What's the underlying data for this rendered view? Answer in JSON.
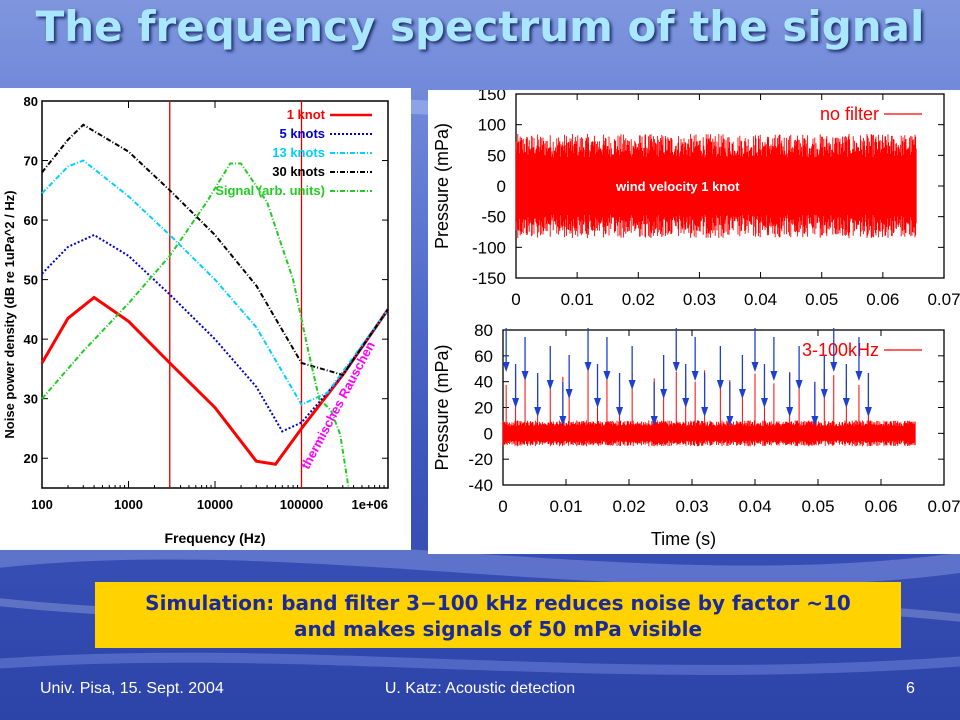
{
  "slide": {
    "title": "The frequency spectrum of the signal",
    "caption_line1": "Simulation: band filter 3−100 kHz reduces noise by factor ~10",
    "caption_line2": "and makes signals of 50 mPa visible",
    "footer_left": "Univ. Pisa, 15. Sept. 2004",
    "footer_center": "U. Katz: Acoustic detection",
    "footer_right": "6"
  },
  "colors": {
    "background": "#4a63c6",
    "title": "#a9e6ff",
    "caption_box": "#ffd200",
    "caption_text": "#1a2a99",
    "signal_trace": "#ff0000"
  },
  "chart_data": [
    {
      "type": "line",
      "xscale": "log",
      "xlabel": "Frequency (Hz)",
      "ylabel": "Noise power density (dB re 1uPa^2 / Hz)",
      "xlim": [
        100,
        1000000
      ],
      "ylim": [
        15,
        80
      ],
      "x_ticks": [
        "100",
        "1000",
        "10000",
        "100000",
        "1e+06"
      ],
      "y_ticks": [
        "20",
        "30",
        "40",
        "50",
        "60",
        "70",
        "80"
      ],
      "legend_position": "top-right",
      "vertical_markers_hz": [
        3000,
        100000
      ],
      "annotation": "thermisches Rauschen",
      "series": [
        {
          "name": "1 knot",
          "color": "#ff0000",
          "style": "solid",
          "points": [
            [
              100,
              36
            ],
            [
              200,
              43.5
            ],
            [
              400,
              47
            ],
            [
              1000,
              43
            ],
            [
              3000,
              36
            ],
            [
              10000,
              28.5
            ],
            [
              30000,
              19.5
            ],
            [
              50000,
              19
            ],
            [
              100000,
              25
            ],
            [
              300000,
              34
            ],
            [
              1000000,
              45
            ]
          ]
        },
        {
          "name": "5 knots",
          "color": "#0000cc",
          "style": "dotted",
          "points": [
            [
              100,
              51
            ],
            [
              200,
              55.5
            ],
            [
              400,
              57.5
            ],
            [
              1000,
              54
            ],
            [
              3000,
              47.5
            ],
            [
              10000,
              40
            ],
            [
              30000,
              32
            ],
            [
              60000,
              24.5
            ],
            [
              100000,
              26
            ],
            [
              300000,
              34
            ],
            [
              1000000,
              45
            ]
          ]
        },
        {
          "name": "13 knots",
          "color": "#00d0ff",
          "style": "dash-dot",
          "points": [
            [
              100,
              64.5
            ],
            [
              200,
              69
            ],
            [
              300,
              70
            ],
            [
              1000,
              64
            ],
            [
              3000,
              57.5
            ],
            [
              10000,
              50
            ],
            [
              30000,
              42
            ],
            [
              100000,
              29
            ],
            [
              200000,
              31
            ],
            [
              1000000,
              45
            ]
          ]
        },
        {
          "name": "30 knots",
          "color": "#000000",
          "style": "dash-dot",
          "points": [
            [
              100,
              68
            ],
            [
              200,
              73.5
            ],
            [
              300,
              76
            ],
            [
              1000,
              71.5
            ],
            [
              3000,
              65
            ],
            [
              10000,
              57.5
            ],
            [
              30000,
              49
            ],
            [
              100000,
              36
            ],
            [
              300000,
              34
            ],
            [
              1000000,
              45
            ]
          ]
        },
        {
          "name": "Signal (arb. units)",
          "color": "#22cc22",
          "style": "dash-dot",
          "points": [
            [
              100,
              30
            ],
            [
              300,
              38
            ],
            [
              1000,
              46
            ],
            [
              3000,
              54
            ],
            [
              8000,
              63
            ],
            [
              15000,
              69.5
            ],
            [
              20000,
              69.5
            ],
            [
              40000,
              63
            ],
            [
              80000,
              50
            ],
            [
              120000,
              38
            ],
            [
              160000,
              30
            ],
            [
              220000,
              28
            ],
            [
              280000,
              24
            ],
            [
              350000,
              15
            ]
          ]
        }
      ]
    },
    {
      "type": "line",
      "xlabel": "",
      "ylabel": "Pressure (mPa)",
      "xlim": [
        0,
        0.07
      ],
      "ylim": [
        -150,
        150
      ],
      "x_ticks": [
        "0",
        "0.01",
        "0.02",
        "0.03",
        "0.04",
        "0.05",
        "0.06",
        "0.07"
      ],
      "y_ticks": [
        "150",
        "100",
        "50",
        "0",
        "-50",
        "-100",
        "-150"
      ],
      "series": [
        {
          "name": "no filter",
          "color": "#ff0000",
          "x_range": [
            0,
            0.0655
          ],
          "amplitude_mpa": 85
        }
      ],
      "annotation": "wind velocity 1 knot",
      "legend_position": "top-right"
    },
    {
      "type": "line",
      "xlabel": "Time (s)",
      "ylabel": "Pressure (mPa)",
      "xlim": [
        0,
        0.07
      ],
      "ylim": [
        -40,
        80
      ],
      "x_ticks": [
        "0",
        "0.01",
        "0.02",
        "0.03",
        "0.04",
        "0.05",
        "0.06",
        "0.07"
      ],
      "y_ticks": [
        "80",
        "60",
        "40",
        "20",
        "0",
        "-20",
        "-40"
      ],
      "series": [
        {
          "name": "3-100kHz",
          "color": "#ff0000",
          "x_range": [
            0,
            0.0655
          ],
          "noise_amplitude_mpa": 10,
          "signal_pulse_mpa": 50
        }
      ],
      "legend_position": "top-right",
      "pulse_times_s": [
        0.0005,
        0.002,
        0.0035,
        0.0055,
        0.0075,
        0.0095,
        0.0105,
        0.0135,
        0.015,
        0.0165,
        0.0185,
        0.0205,
        0.024,
        0.0255,
        0.0275,
        0.029,
        0.0305,
        0.032,
        0.0345,
        0.036,
        0.038,
        0.04,
        0.0415,
        0.043,
        0.0455,
        0.047,
        0.0495,
        0.051,
        0.0525,
        0.0545,
        0.0565,
        0.058
      ]
    }
  ]
}
